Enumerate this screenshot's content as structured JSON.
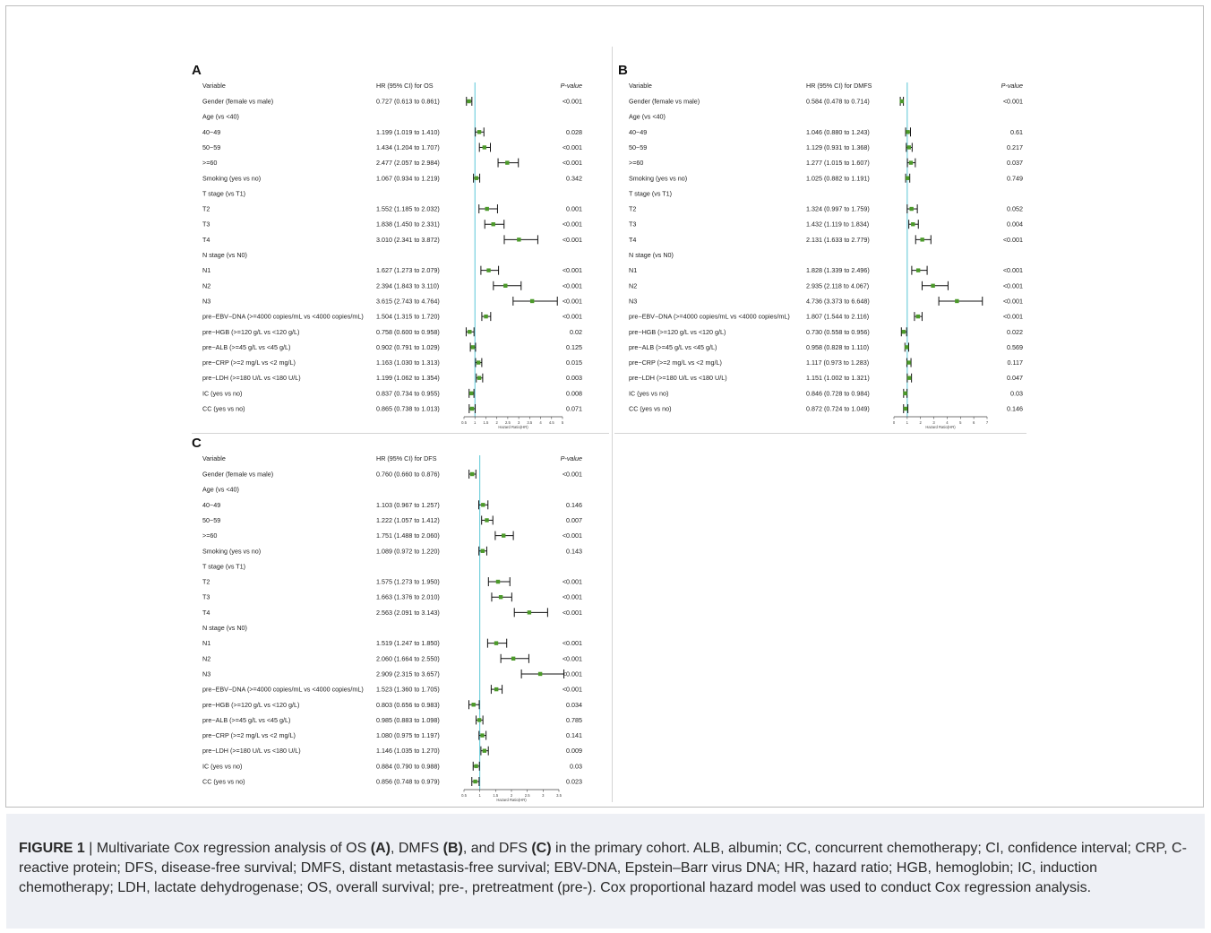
{
  "panels": [
    {
      "letter": "A",
      "header_variable": "Variable",
      "header_hr": "HR (95% CI) for OS",
      "header_p": "P-value",
      "axis_label": "Hazard Ratio(HR)",
      "ticks": [
        "0.5",
        "1",
        "1.5",
        "2",
        "2.5",
        "3",
        "3.5",
        "4",
        "4.5",
        "5"
      ],
      "rows": [
        {
          "label": "Gender (female vs male)",
          "hr": "0.727 (0.613 to 0.861)",
          "p": "<0.001",
          "est": 0.727,
          "lo": 0.613,
          "hi": 0.861
        },
        {
          "label": "Age (vs <40)",
          "hr": "",
          "p": ""
        },
        {
          "label": "  40~49",
          "hr": "1.199 (1.019 to 1.410)",
          "p": "0.028",
          "est": 1.199,
          "lo": 1.019,
          "hi": 1.41
        },
        {
          "label": "  50~59",
          "hr": "1.434 (1.204 to 1.707)",
          "p": "<0.001",
          "est": 1.434,
          "lo": 1.204,
          "hi": 1.707
        },
        {
          "label": "  >=60",
          "hr": "2.477 (2.057 to 2.984)",
          "p": "<0.001",
          "est": 2.477,
          "lo": 2.057,
          "hi": 2.984
        },
        {
          "label": "Smoking  (yes vs no)",
          "hr": "1.067 (0.934 to 1.219)",
          "p": "0.342",
          "est": 1.067,
          "lo": 0.934,
          "hi": 1.219
        },
        {
          "label": "T stage (vs T1)",
          "hr": "",
          "p": ""
        },
        {
          "label": "  T2",
          "hr": "1.552 (1.185 to 2.032)",
          "p": "0.001",
          "est": 1.552,
          "lo": 1.185,
          "hi": 2.032
        },
        {
          "label": "  T3",
          "hr": "1.838 (1.450 to 2.331)",
          "p": "<0.001",
          "est": 1.838,
          "lo": 1.45,
          "hi": 2.331
        },
        {
          "label": "  T4",
          "hr": "3.010 (2.341 to 3.872)",
          "p": "<0.001",
          "est": 3.01,
          "lo": 2.341,
          "hi": 3.872
        },
        {
          "label": "N stage (vs N0)",
          "hr": "",
          "p": ""
        },
        {
          "label": "  N1",
          "hr": "1.627 (1.273 to 2.079)",
          "p": "<0.001",
          "est": 1.627,
          "lo": 1.273,
          "hi": 2.079
        },
        {
          "label": "  N2",
          "hr": "2.394 (1.843 to 3.110)",
          "p": "<0.001",
          "est": 2.394,
          "lo": 1.843,
          "hi": 3.11
        },
        {
          "label": "  N3",
          "hr": "3.615 (2.743 to 4.764)",
          "p": "<0.001",
          "est": 3.615,
          "lo": 2.743,
          "hi": 4.764
        },
        {
          "label": "pre−EBV−DNA (>=4000 copies/mL vs <4000 copies/mL)",
          "hr": "1.504 (1.315 to 1.720)",
          "p": "<0.001",
          "est": 1.504,
          "lo": 1.315,
          "hi": 1.72
        },
        {
          "label": "pre−HGB (>=120 g/L vs <120 g/L)",
          "hr": "0.758 (0.600 to 0.958)",
          "p": "0.02",
          "est": 0.758,
          "lo": 0.6,
          "hi": 0.958
        },
        {
          "label": "pre−ALB (>=45 g/L vs <45 g/L)",
          "hr": "0.902 (0.791 to 1.029)",
          "p": "0.125",
          "est": 0.902,
          "lo": 0.791,
          "hi": 1.029
        },
        {
          "label": "pre−CRP (>=2 mg/L vs <2 mg/L)",
          "hr": "1.163 (1.030 to 1.313)",
          "p": "0.015",
          "est": 1.163,
          "lo": 1.03,
          "hi": 1.313
        },
        {
          "label": "pre−LDH (>=180 U/L vs <180 U/L)",
          "hr": "1.199 (1.062 to 1.354)",
          "p": "0.003",
          "est": 1.199,
          "lo": 1.062,
          "hi": 1.354
        },
        {
          "label": "IC (yes vs no)",
          "hr": "0.837 (0.734 to 0.955)",
          "p": "0.008",
          "est": 0.837,
          "lo": 0.734,
          "hi": 0.955
        },
        {
          "label": "CC (yes vs no)",
          "hr": "0.865 (0.738 to 1.013)",
          "p": "0.071",
          "est": 0.865,
          "lo": 0.738,
          "hi": 1.013
        }
      ]
    },
    {
      "letter": "B",
      "header_variable": "Variable",
      "header_hr": "HR (95% CI) for DMFS",
      "header_p": "P-value",
      "axis_label": "Hazard Ratio(HR)",
      "ticks": [
        "0",
        "1",
        "2",
        "3",
        "4",
        "5",
        "6",
        "7"
      ],
      "rows": [
        {
          "label": "Gender (female vs male)",
          "hr": "0.584 (0.478 to 0.714)",
          "p": "<0.001",
          "est": 0.584,
          "lo": 0.478,
          "hi": 0.714
        },
        {
          "label": "Age (vs <40)",
          "hr": "",
          "p": ""
        },
        {
          "label": "  40~49",
          "hr": "1.046 (0.880 to 1.243)",
          "p": "0.61",
          "est": 1.046,
          "lo": 0.88,
          "hi": 1.243
        },
        {
          "label": "  50~59",
          "hr": "1.129 (0.931 to 1.368)",
          "p": "0.217",
          "est": 1.129,
          "lo": 0.931,
          "hi": 1.368
        },
        {
          "label": "  >=60",
          "hr": "1.277 (1.015 to 1.607)",
          "p": "0.037",
          "est": 1.277,
          "lo": 1.015,
          "hi": 1.607
        },
        {
          "label": "Smoking  (yes vs no)",
          "hr": "1.025 (0.882 to 1.191)",
          "p": "0.749",
          "est": 1.025,
          "lo": 0.882,
          "hi": 1.191
        },
        {
          "label": "T stage (vs T1)",
          "hr": "",
          "p": ""
        },
        {
          "label": "  T2",
          "hr": "1.324 (0.997 to 1.759)",
          "p": "0.052",
          "est": 1.324,
          "lo": 0.997,
          "hi": 1.759
        },
        {
          "label": "  T3",
          "hr": "1.432 (1.119 to 1.834)",
          "p": "0.004",
          "est": 1.432,
          "lo": 1.119,
          "hi": 1.834
        },
        {
          "label": "  T4",
          "hr": "2.131 (1.633 to 2.779)",
          "p": "<0.001",
          "est": 2.131,
          "lo": 1.633,
          "hi": 2.779
        },
        {
          "label": "N stage (vs N0)",
          "hr": "",
          "p": ""
        },
        {
          "label": "  N1",
          "hr": "1.828 (1.339 to 2.496)",
          "p": "<0.001",
          "est": 1.828,
          "lo": 1.339,
          "hi": 2.496
        },
        {
          "label": "  N2",
          "hr": "2.935 (2.118 to 4.067)",
          "p": "<0.001",
          "est": 2.935,
          "lo": 2.118,
          "hi": 4.067
        },
        {
          "label": "  N3",
          "hr": "4.736 (3.373 to 6.648)",
          "p": "<0.001",
          "est": 4.736,
          "lo": 3.373,
          "hi": 6.648
        },
        {
          "label": "pre−EBV−DNA (>=4000 copies/mL vs <4000 copies/mL)",
          "hr": "1.807 (1.544 to 2.116)",
          "p": "<0.001",
          "est": 1.807,
          "lo": 1.544,
          "hi": 2.116
        },
        {
          "label": "pre−HGB (>=120 g/L vs <120 g/L)",
          "hr": "0.730 (0.558 to 0.956)",
          "p": "0.022",
          "est": 0.73,
          "lo": 0.558,
          "hi": 0.956
        },
        {
          "label": "pre−ALB (>=45 g/L vs <45 g/L)",
          "hr": "0.958 (0.828 to 1.110)",
          "p": "0.569",
          "est": 0.958,
          "lo": 0.828,
          "hi": 1.11
        },
        {
          "label": "pre−CRP (>=2 mg/L vs <2 mg/L)",
          "hr": "1.117 (0.973 to 1.283)",
          "p": "0.117",
          "est": 1.117,
          "lo": 0.973,
          "hi": 1.283
        },
        {
          "label": "pre−LDH (>=180 U/L vs <180 U/L)",
          "hr": "1.151 (1.002 to 1.321)",
          "p": "0.047",
          "est": 1.151,
          "lo": 1.002,
          "hi": 1.321
        },
        {
          "label": "IC (yes vs no)",
          "hr": "0.846 (0.728 to 0.984)",
          "p": "0.03",
          "est": 0.846,
          "lo": 0.728,
          "hi": 0.984
        },
        {
          "label": "CC (yes vs no)",
          "hr": "0.872 (0.724 to 1.049)",
          "p": "0.146",
          "est": 0.872,
          "lo": 0.724,
          "hi": 1.049
        }
      ]
    },
    {
      "letter": "C",
      "header_variable": "Variable",
      "header_hr": "HR (95% CI) for DFS",
      "header_p": "P-value",
      "axis_label": "Hazard Ratio(HR)",
      "ticks": [
        "0.5",
        "1",
        "1.5",
        "2",
        "2.5",
        "3",
        "3.5"
      ],
      "rows": [
        {
          "label": "Gender (female vs male)",
          "hr": "0.760 (0.660 to 0.876)",
          "p": "<0.001",
          "est": 0.76,
          "lo": 0.66,
          "hi": 0.876
        },
        {
          "label": "Age (vs <40)",
          "hr": "",
          "p": ""
        },
        {
          "label": "  40~49",
          "hr": "1.103 (0.967 to 1.257)",
          "p": "0.146",
          "est": 1.103,
          "lo": 0.967,
          "hi": 1.257
        },
        {
          "label": "  50~59",
          "hr": "1.222 (1.057 to 1.412)",
          "p": "0.007",
          "est": 1.222,
          "lo": 1.057,
          "hi": 1.412
        },
        {
          "label": "  >=60",
          "hr": "1.751 (1.488 to 2.060)",
          "p": "<0.001",
          "est": 1.751,
          "lo": 1.488,
          "hi": 2.06
        },
        {
          "label": "Smoking  (yes vs no)",
          "hr": "1.089 (0.972 to 1.220)",
          "p": "0.143",
          "est": 1.089,
          "lo": 0.972,
          "hi": 1.22
        },
        {
          "label": "T stage (vs T1)",
          "hr": "",
          "p": ""
        },
        {
          "label": "  T2",
          "hr": "1.575 (1.273 to 1.950)",
          "p": "<0.001",
          "est": 1.575,
          "lo": 1.273,
          "hi": 1.95
        },
        {
          "label": "  T3",
          "hr": "1.663 (1.376 to 2.010)",
          "p": "<0.001",
          "est": 1.663,
          "lo": 1.376,
          "hi": 2.01
        },
        {
          "label": "  T4",
          "hr": "2.563 (2.091 to 3.143)",
          "p": "<0.001",
          "est": 2.563,
          "lo": 2.091,
          "hi": 3.143
        },
        {
          "label": "N stage (vs N0)",
          "hr": "",
          "p": ""
        },
        {
          "label": "  N1",
          "hr": "1.519 (1.247 to 1.850)",
          "p": "<0.001",
          "est": 1.519,
          "lo": 1.247,
          "hi": 1.85
        },
        {
          "label": "  N2",
          "hr": "2.060 (1.664 to 2.550)",
          "p": "<0.001",
          "est": 2.06,
          "lo": 1.664,
          "hi": 2.55
        },
        {
          "label": "  N3",
          "hr": "2.909 (2.315 to 3.657)",
          "p": "<0.001",
          "est": 2.909,
          "lo": 2.315,
          "hi": 3.657
        },
        {
          "label": "pre−EBV−DNA (>=4000 copies/mL vs <4000 copies/mL)",
          "hr": "1.523 (1.360 to 1.705)",
          "p": "<0.001",
          "est": 1.523,
          "lo": 1.36,
          "hi": 1.705
        },
        {
          "label": "pre−HGB (>=120 g/L vs <120 g/L)",
          "hr": "0.803 (0.656 to 0.983)",
          "p": "0.034",
          "est": 0.803,
          "lo": 0.656,
          "hi": 0.983
        },
        {
          "label": "pre−ALB (>=45 g/L vs <45 g/L)",
          "hr": "0.985 (0.883 to 1.098)",
          "p": "0.785",
          "est": 0.985,
          "lo": 0.883,
          "hi": 1.098
        },
        {
          "label": "pre−CRP (>=2 mg/L vs <2 mg/L)",
          "hr": "1.080 (0.975 to 1.197)",
          "p": "0.141",
          "est": 1.08,
          "lo": 0.975,
          "hi": 1.197
        },
        {
          "label": "pre−LDH (>=180 U/L vs <180 U/L)",
          "hr": "1.146 (1.035 to 1.270)",
          "p": "0.009",
          "est": 1.146,
          "lo": 1.035,
          "hi": 1.27
        },
        {
          "label": "IC (yes vs no)",
          "hr": "0.884 (0.790 to 0.988)",
          "p": "0.03",
          "est": 0.884,
          "lo": 0.79,
          "hi": 0.988
        },
        {
          "label": "CC (yes vs no)",
          "hr": "0.856 (0.748 to 0.979)",
          "p": "0.023",
          "est": 0.856,
          "lo": 0.748,
          "hi": 0.979
        }
      ]
    }
  ],
  "caption": {
    "figure_label": "FIGURE 1",
    "sep": " | ",
    "t1": "Multivariate Cox regression analysis of OS ",
    "b1": "(A)",
    "t2": ", DMFS ",
    "b2": "(B)",
    "t3": ", and DFS ",
    "b3": "(C)",
    "t4": " in the primary cohort. ALB, albumin; CC, concurrent chemotherapy; CI, confidence interval; CRP, C-reactive protein; DFS, disease-free survival; DMFS, distant metastasis-free survival; EBV-DNA, Epstein–Barr virus DNA; HR, hazard ratio; HGB, hemoglobin; IC, induction chemotherapy; LDH, lactate dehydrogenase; OS, overall survival; pre-, pretreatment (pre-). Cox proportional hazard model was used to conduct Cox regression analysis."
  },
  "colors": {
    "point": "#4c9a2a",
    "reference_line": "#5bc6d6",
    "whisker": "#111111",
    "caption_bg": "#eef0f5"
  },
  "chart_data": [
    {
      "type": "forest",
      "title": "A",
      "xlabel": "Hazard Ratio(HR)",
      "xlim": [
        0.5,
        5
      ],
      "reference_line": 1,
      "categories": [
        "Gender (female vs male)",
        "40~49",
        "50~59",
        ">=60",
        "Smoking  (yes vs no)",
        "T2",
        "T3",
        "T4",
        "N1",
        "N2",
        "N3",
        "pre−EBV−DNA (>=4000 copies/mL vs <4000 copies/mL)",
        "pre−HGB (>=120 g/L vs <120 g/L)",
        "pre−ALB (>=45 g/L vs <45 g/L)",
        "pre−CRP (>=2 mg/L vs <2 mg/L)",
        "pre−LDH (>=180 U/L vs <180 U/L)",
        "IC (yes vs no)",
        "CC (yes vs no)"
      ],
      "series": [
        {
          "values": [
            0.727,
            1.199,
            1.434,
            2.477,
            1.067,
            1.552,
            1.838,
            3.01,
            1.627,
            2.394,
            3.615,
            1.504,
            0.758,
            0.902,
            1.163,
            1.199,
            0.837,
            0.865
          ],
          "lower": [
            0.613,
            1.019,
            1.204,
            2.057,
            0.934,
            1.185,
            1.45,
            2.341,
            1.273,
            1.843,
            2.743,
            1.315,
            0.6,
            0.791,
            1.03,
            1.062,
            0.734,
            0.738
          ],
          "upper": [
            0.861,
            1.41,
            1.707,
            2.984,
            1.219,
            2.032,
            2.331,
            3.872,
            2.079,
            3.11,
            4.764,
            1.72,
            0.958,
            1.029,
            1.313,
            1.354,
            0.955,
            1.013
          ]
        }
      ]
    },
    {
      "type": "forest",
      "title": "B",
      "xlabel": "Hazard Ratio(HR)",
      "xlim": [
        0,
        7
      ],
      "reference_line": 1,
      "categories": [
        "Gender (female vs male)",
        "40~49",
        "50~59",
        ">=60",
        "Smoking  (yes vs no)",
        "T2",
        "T3",
        "T4",
        "N1",
        "N2",
        "N3",
        "pre−EBV−DNA (>=4000 copies/mL vs <4000 copies/mL)",
        "pre−HGB (>=120 g/L vs <120 g/L)",
        "pre−ALB (>=45 g/L vs <45 g/L)",
        "pre−CRP (>=2 mg/L vs <2 mg/L)",
        "pre−LDH (>=180 U/L vs <180 U/L)",
        "IC (yes vs no)",
        "CC (yes vs no)"
      ],
      "series": [
        {
          "values": [
            0.584,
            1.046,
            1.129,
            1.277,
            1.025,
            1.324,
            1.432,
            2.131,
            1.828,
            2.935,
            4.736,
            1.807,
            0.73,
            0.958,
            1.117,
            1.151,
            0.846,
            0.872
          ],
          "lower": [
            0.478,
            0.88,
            0.931,
            1.015,
            0.882,
            0.997,
            1.119,
            1.633,
            1.339,
            2.118,
            3.373,
            1.544,
            0.558,
            0.828,
            0.973,
            1.002,
            0.728,
            0.724
          ],
          "upper": [
            0.714,
            1.243,
            1.368,
            1.607,
            1.191,
            1.759,
            1.834,
            2.779,
            2.496,
            4.067,
            6.648,
            2.116,
            0.956,
            1.11,
            1.283,
            1.321,
            0.984,
            1.049
          ]
        }
      ]
    },
    {
      "type": "forest",
      "title": "C",
      "xlabel": "Hazard Ratio(HR)",
      "xlim": [
        0.5,
        3.5
      ],
      "reference_line": 1,
      "categories": [
        "Gender (female vs male)",
        "40~49",
        "50~59",
        ">=60",
        "Smoking  (yes vs no)",
        "T2",
        "T3",
        "T4",
        "N1",
        "N2",
        "N3",
        "pre−EBV−DNA (>=4000 copies/mL vs <4000 copies/mL)",
        "pre−HGB (>=120 g/L vs <120 g/L)",
        "pre−ALB (>=45 g/L vs <45 g/L)",
        "pre−CRP (>=2 mg/L vs <2 mg/L)",
        "pre−LDH (>=180 U/L vs <180 U/L)",
        "IC (yes vs no)",
        "CC (yes vs no)"
      ],
      "series": [
        {
          "values": [
            0.76,
            1.103,
            1.222,
            1.751,
            1.089,
            1.575,
            1.663,
            2.563,
            1.519,
            2.06,
            2.909,
            1.523,
            0.803,
            0.985,
            1.08,
            1.146,
            0.884,
            0.856
          ],
          "lower": [
            0.66,
            0.967,
            1.057,
            1.488,
            0.972,
            1.273,
            1.376,
            2.091,
            1.247,
            1.664,
            2.315,
            1.36,
            0.656,
            0.883,
            0.975,
            1.035,
            0.79,
            0.748
          ],
          "upper": [
            0.876,
            1.257,
            1.412,
            2.06,
            1.22,
            1.95,
            2.01,
            3.143,
            1.85,
            2.55,
            3.657,
            1.705,
            0.983,
            1.098,
            1.197,
            1.27,
            0.988,
            0.979
          ]
        }
      ]
    }
  ]
}
